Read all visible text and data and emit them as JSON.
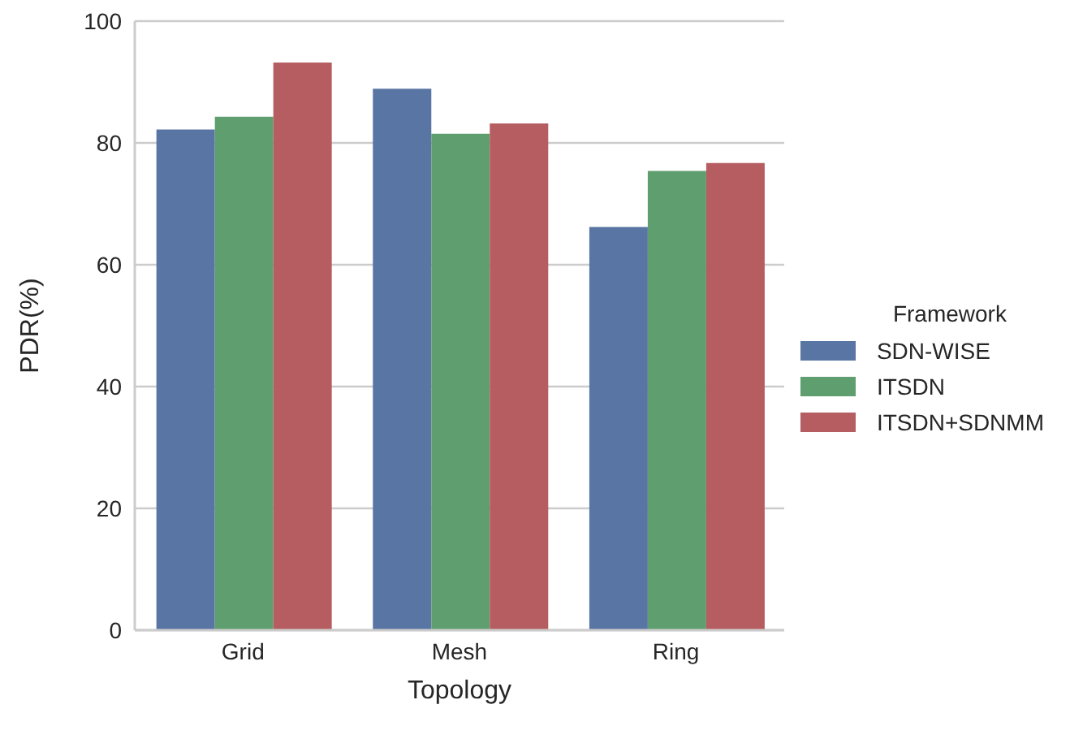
{
  "chart_data": {
    "type": "bar",
    "xlabel": "Topology",
    "ylabel": "PDR(%)",
    "legend_title": "Framework",
    "categories": [
      "Grid",
      "Mesh",
      "Ring"
    ],
    "series": [
      {
        "name": "SDN-WISE",
        "color": "#5975a4",
        "values": [
          82.2,
          88.9,
          66.2
        ]
      },
      {
        "name": "ITSDN",
        "color": "#5f9e6e",
        "values": [
          84.3,
          81.5,
          75.4
        ]
      },
      {
        "name": "ITSDN+SDNMM",
        "color": "#b55d60",
        "values": [
          93.2,
          83.2,
          76.7
        ]
      }
    ],
    "ylim": [
      0,
      100
    ],
    "yticks": [
      0,
      20,
      40,
      60,
      80,
      100
    ],
    "grid": "y",
    "legend": "right"
  }
}
